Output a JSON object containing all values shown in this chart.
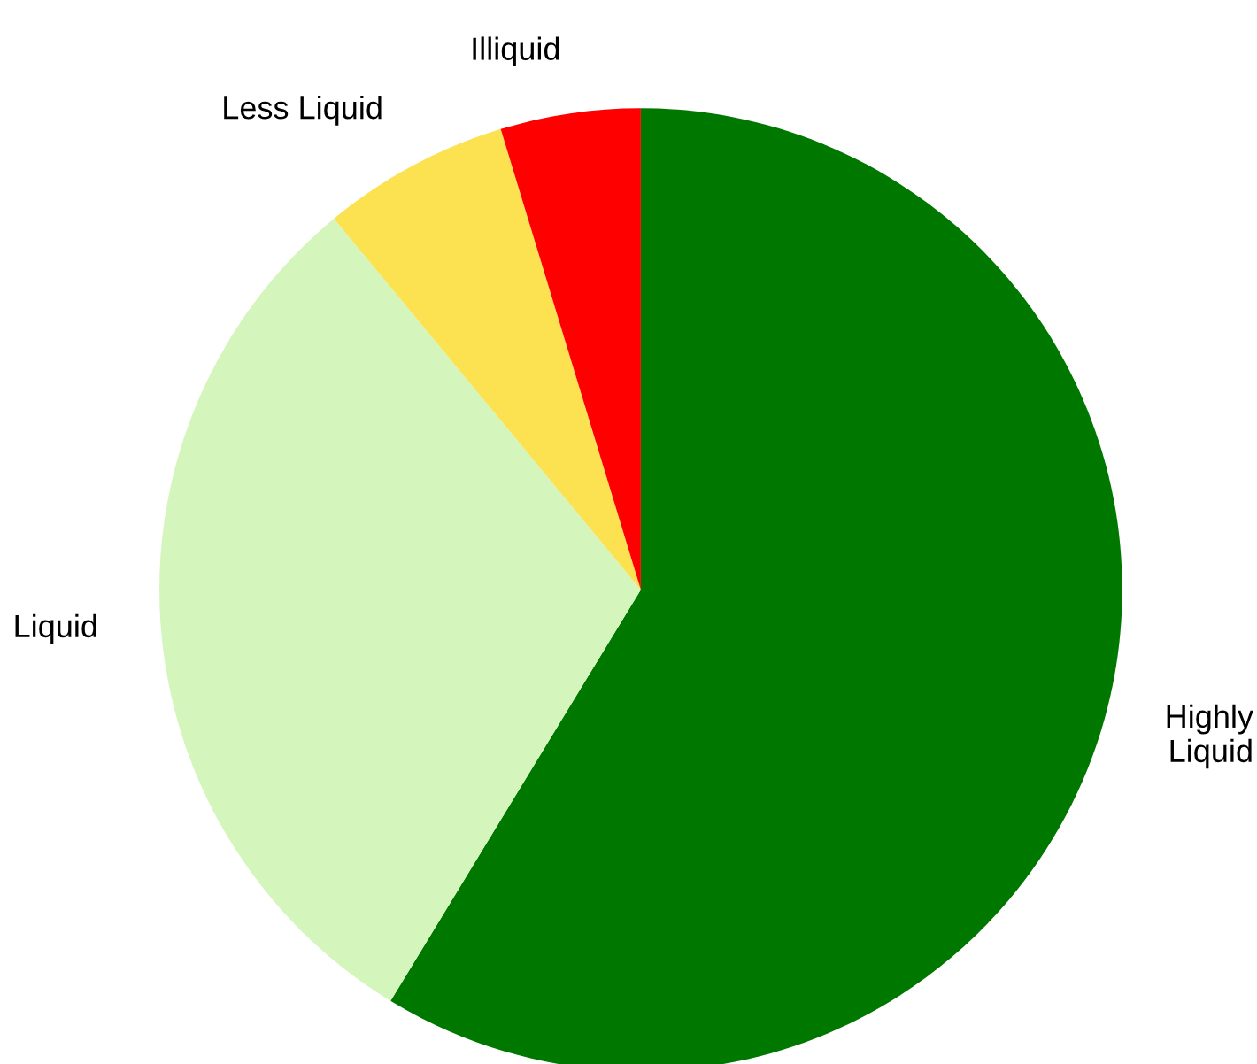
{
  "chart_data": {
    "type": "pie",
    "categories": [
      "Highly\nLiquid",
      "Liquid",
      "Less Liquid",
      "Illiquid"
    ],
    "values": [
      58.7,
      30.3,
      6.3,
      4.7
    ],
    "colors": [
      "#007800",
      "#d4f5bb",
      "#fce150",
      "#ff0000"
    ]
  }
}
